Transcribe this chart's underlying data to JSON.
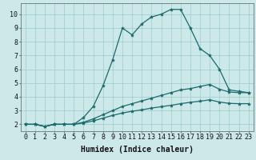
{
  "xlabel": "Humidex (Indice chaleur)",
  "background_color": "#cce8e8",
  "grid_color": "#99cccc",
  "line_color": "#1a6b6b",
  "xlim": [
    -0.5,
    23.5
  ],
  "ylim": [
    1.5,
    10.8
  ],
  "xticks": [
    0,
    1,
    2,
    3,
    4,
    5,
    6,
    7,
    8,
    9,
    10,
    11,
    12,
    13,
    14,
    15,
    16,
    17,
    18,
    19,
    20,
    21,
    22,
    23
  ],
  "yticks": [
    2,
    3,
    4,
    5,
    6,
    7,
    8,
    9,
    10
  ],
  "series": [
    {
      "x": [
        0,
        1,
        2,
        3,
        4,
        5,
        6,
        7,
        8,
        9,
        10,
        11,
        12,
        13,
        14,
        15,
        16,
        17,
        18,
        19,
        20,
        21,
        22,
        23
      ],
      "y": [
        2.0,
        2.0,
        1.85,
        2.0,
        2.0,
        2.0,
        2.5,
        3.3,
        4.8,
        6.7,
        9.0,
        8.5,
        9.3,
        9.8,
        10.0,
        10.35,
        10.35,
        9.0,
        7.5,
        7.0,
        6.0,
        4.5,
        4.4,
        4.3
      ]
    },
    {
      "x": [
        0,
        1,
        2,
        3,
        4,
        5,
        6,
        7,
        8,
        9,
        10,
        11,
        12,
        13,
        14,
        15,
        16,
        17,
        18,
        19,
        20,
        21,
        22,
        23
      ],
      "y": [
        2.0,
        2.0,
        1.85,
        2.0,
        2.0,
        2.0,
        2.15,
        2.4,
        2.7,
        3.0,
        3.3,
        3.5,
        3.7,
        3.9,
        4.1,
        4.3,
        4.5,
        4.6,
        4.75,
        4.9,
        4.55,
        4.35,
        4.3,
        4.3
      ]
    },
    {
      "x": [
        0,
        1,
        2,
        3,
        4,
        5,
        6,
        7,
        8,
        9,
        10,
        11,
        12,
        13,
        14,
        15,
        16,
        17,
        18,
        19,
        20,
        21,
        22,
        23
      ],
      "y": [
        2.0,
        2.0,
        1.85,
        2.0,
        2.0,
        2.0,
        2.1,
        2.25,
        2.45,
        2.65,
        2.82,
        2.95,
        3.05,
        3.18,
        3.28,
        3.38,
        3.5,
        3.6,
        3.68,
        3.78,
        3.62,
        3.52,
        3.5,
        3.5
      ]
    }
  ],
  "marker": "*",
  "markersize": 3,
  "linewidth": 0.9,
  "xlabel_fontsize": 7,
  "tick_fontsize": 6
}
